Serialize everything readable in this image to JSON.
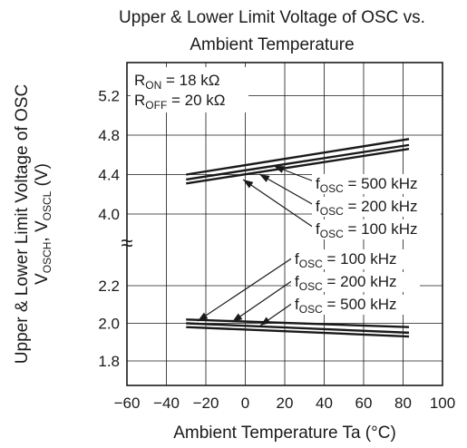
{
  "chart_data": {
    "type": "line",
    "title_lines": [
      "Upper & Lower Limit Voltage of OSC vs.",
      "Ambient Temperature"
    ],
    "xlabel": "Ambient Temperature   Ta (°C)",
    "ylabel_line1": "Upper & Lower Limit Voltage of OSC",
    "ylabel_line2": {
      "v": "V",
      "s1": "OSCH",
      "sep": ", V",
      "s2": "OSCL",
      "unit": " (V)"
    },
    "xlim": [
      -60,
      100
    ],
    "x_ticks": [
      -60,
      -40,
      -20,
      0,
      20,
      40,
      60,
      80,
      100
    ],
    "x_tick_labels": [
      "−60",
      "−40",
      "−20",
      "0",
      "20",
      "40",
      "60",
      "80",
      "100"
    ],
    "ylim_upper_panel": [
      3.8,
      5.6
    ],
    "ylim_lower_panel": [
      1.6,
      2.4
    ],
    "y_ticks": [
      1.8,
      2.0,
      2.2,
      4.0,
      4.4,
      4.8,
      5.2
    ],
    "y_tick_labels": [
      "1.8",
      "2.0",
      "2.2",
      "4.0",
      "4.4",
      "4.8",
      "5.2"
    ],
    "axis_break_symbol": "≈",
    "grid": true,
    "conditions": [
      {
        "name": "R",
        "sub": "ON",
        "value": " = 18 kΩ"
      },
      {
        "name": "R",
        "sub": "OFF",
        "value": " = 20 kΩ"
      }
    ],
    "series": [
      {
        "group": "upper",
        "label": {
          "f": "f",
          "sub": "OSC",
          "value": " = 500 kHz"
        },
        "x": [
          -30,
          83
        ],
        "y": [
          4.4,
          4.76
        ]
      },
      {
        "group": "upper",
        "label": {
          "f": "f",
          "sub": "OSC",
          "value": " = 200 kHz"
        },
        "x": [
          -30,
          83
        ],
        "y": [
          4.35,
          4.7
        ]
      },
      {
        "group": "upper",
        "label": {
          "f": "f",
          "sub": "OSC",
          "value": " = 100 kHz"
        },
        "x": [
          -30,
          83
        ],
        "y": [
          4.31,
          4.66
        ]
      },
      {
        "group": "lower",
        "label": {
          "f": "f",
          "sub": "OSC",
          "value": " = 100 kHz"
        },
        "x": [
          -30,
          83
        ],
        "y": [
          2.02,
          1.98
        ]
      },
      {
        "group": "lower",
        "label": {
          "f": "f",
          "sub": "OSC",
          "value": " = 200 kHz"
        },
        "x": [
          -30,
          83
        ],
        "y": [
          2.0,
          1.95
        ]
      },
      {
        "group": "lower",
        "label": {
          "f": "f",
          "sub": "OSC",
          "value": " = 500 kHz"
        },
        "x": [
          -30,
          83
        ],
        "y": [
          1.98,
          1.93
        ]
      }
    ],
    "colors": {
      "line": "#1a1a1a",
      "grid": "#1a1a1a",
      "background": "#ffffff"
    }
  }
}
